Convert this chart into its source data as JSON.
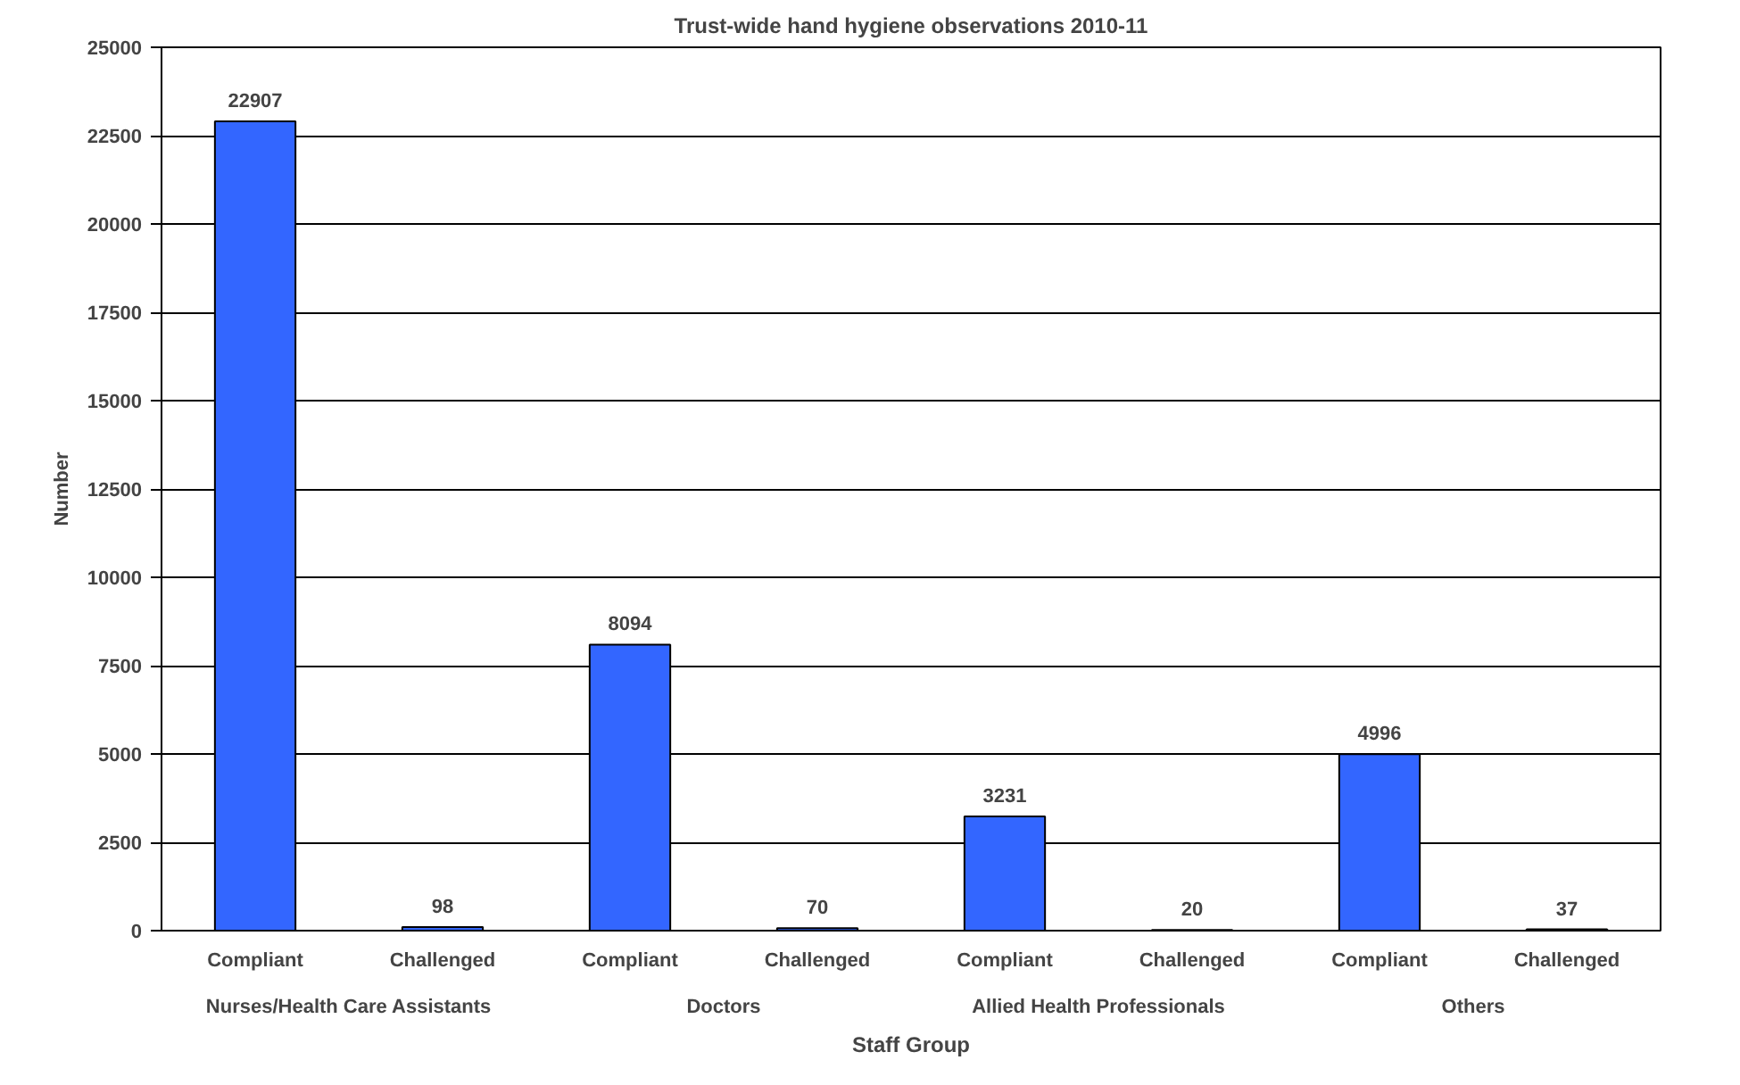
{
  "chart_data": {
    "type": "bar",
    "title": "Trust-wide hand hygiene observations 2010-11",
    "xlabel": "Staff Group",
    "ylabel": "Number",
    "categories": [
      "Compliant",
      "Challenged",
      "Compliant",
      "Challenged",
      "Compliant",
      "Challenged",
      "Compliant",
      "Challenged"
    ],
    "values": [
      22907,
      98,
      8094,
      70,
      3231,
      20,
      4996,
      37
    ],
    "color": "#3366ff",
    "data_labels": true,
    "annotations": [
      "Nurses/Health Care Assistants",
      "Doctors",
      "Allied Health Professionals",
      "Others"
    ],
    "ylim": [
      0,
      25000
    ],
    "yticks": [
      0,
      2500,
      5000,
      7500,
      10000,
      12500,
      15000,
      17500,
      20000,
      22500,
      25000
    ],
    "grid": "y"
  }
}
